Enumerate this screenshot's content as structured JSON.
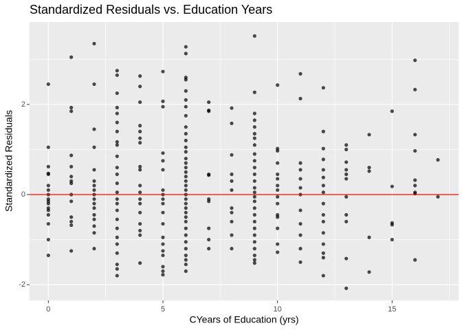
{
  "chart_data": {
    "type": "scatter",
    "title": "Standardized Residuals vs. Education Years",
    "x_label": "CYears of Education (yrs)",
    "y_label": "Standardized Residuals",
    "x": [
      0,
      0,
      0,
      0,
      0,
      0,
      0,
      0,
      0,
      0,
      0,
      0,
      0,
      0,
      0,
      0,
      0,
      1,
      1,
      1,
      1,
      1,
      1,
      1,
      1,
      1,
      1,
      1,
      1,
      1,
      1,
      2,
      2,
      2,
      2,
      2,
      2,
      2,
      2,
      2,
      2,
      2,
      2,
      2,
      2,
      2,
      2,
      2,
      3,
      3,
      3,
      3,
      3,
      3,
      3,
      3,
      3,
      3,
      3,
      3,
      3,
      3,
      3,
      3,
      3,
      3,
      3,
      3,
      3,
      3,
      3,
      3,
      3,
      4,
      4,
      4,
      4,
      4,
      4,
      4,
      4,
      4,
      4,
      4,
      4,
      4,
      4,
      4,
      4,
      4,
      4,
      5,
      5,
      5,
      5,
      5,
      5,
      5,
      5,
      5,
      5,
      5,
      5,
      5,
      5,
      5,
      5,
      5,
      5,
      5,
      6,
      6,
      6,
      6,
      6,
      6,
      6,
      6,
      6,
      6,
      6,
      6,
      6,
      6,
      6,
      6,
      6,
      6,
      6,
      6,
      6,
      6,
      6,
      6,
      6,
      6,
      6,
      6,
      6,
      6,
      6,
      6,
      6,
      6,
      6,
      6,
      7,
      7,
      7,
      7,
      7,
      7,
      7,
      7,
      7,
      7,
      8,
      8,
      8,
      8,
      8,
      8,
      8,
      8,
      8,
      8,
      8,
      9,
      9,
      9,
      9,
      9,
      9,
      9,
      9,
      9,
      9,
      9,
      9,
      9,
      9,
      9,
      9,
      9,
      9,
      9,
      9,
      9,
      9,
      9,
      9,
      9,
      9,
      9,
      10,
      10,
      10,
      10,
      10,
      10,
      10,
      10,
      10,
      10,
      10,
      10,
      10,
      10,
      10,
      11,
      11,
      11,
      11,
      11,
      11,
      11,
      11,
      11,
      11,
      11,
      11,
      12,
      12,
      12,
      12,
      12,
      12,
      12,
      12,
      12,
      12,
      12,
      12,
      12,
      12,
      12,
      12,
      13,
      13,
      13,
      13,
      13,
      13,
      13,
      13,
      13,
      13,
      13,
      14,
      14,
      14,
      14,
      14,
      15,
      15,
      15,
      15,
      15,
      16,
      16,
      16,
      16,
      16,
      16,
      16,
      16,
      16,
      17,
      17
    ],
    "y": [
      2.45,
      1.05,
      0.62,
      0.47,
      0.45,
      0.2,
      0.1,
      0,
      -0.1,
      -0.15,
      -0.2,
      -0.3,
      -0.35,
      -0.45,
      -0.65,
      -1.0,
      -1.35,
      3.05,
      1.93,
      1.85,
      0.87,
      0.62,
      0.4,
      0.3,
      0.25,
      0.0,
      -0.15,
      -0.5,
      -0.6,
      -0.68,
      -1.25,
      3.35,
      2.45,
      1.45,
      1.05,
      0.55,
      0.3,
      0.2,
      0.1,
      0,
      -0.1,
      -0.2,
      -0.3,
      -0.45,
      -0.55,
      -0.7,
      -0.85,
      -1.2,
      2.75,
      2.65,
      2.25,
      1.93,
      1.8,
      1.6,
      1.4,
      1.17,
      1.1,
      0.85,
      0.6,
      0.45,
      0.25,
      0.05,
      -0.1,
      -0.2,
      -0.35,
      -0.55,
      -0.75,
      -0.95,
      -1.1,
      -1.3,
      -1.55,
      -1.65,
      -1.8,
      2.63,
      2.4,
      2.05,
      1.53,
      1.4,
      1.25,
      1.15,
      0.62,
      0.55,
      0.2,
      0.05,
      -0.1,
      -0.2,
      -0.4,
      -0.65,
      -0.8,
      -0.9,
      -1.52,
      2.73,
      2.07,
      1.95,
      0.92,
      0.75,
      0.55,
      0.1,
      0,
      -0.1,
      -0.2,
      -0.4,
      -0.65,
      -0.95,
      -1.1,
      -1.25,
      -1.35,
      -1.6,
      -1.7,
      -1.78,
      3.28,
      3.13,
      2.6,
      2.55,
      2.3,
      2.1,
      1.95,
      1.75,
      1.5,
      1.35,
      1.2,
      1.05,
      0.95,
      0.8,
      0.7,
      0.6,
      0.5,
      0.4,
      0.3,
      0.2,
      0.1,
      0,
      -0.1,
      -0.2,
      -0.3,
      -0.4,
      -0.5,
      -0.6,
      -0.75,
      -0.9,
      -1.05,
      -1.2,
      -1.35,
      -1.45,
      -1.55,
      -1.7,
      2.05,
      1.87,
      1.85,
      0.45,
      0.43,
      -0.1,
      -0.15,
      -0.75,
      -1.0,
      -1.2,
      1.92,
      1.58,
      0.88,
      0.45,
      0.3,
      0.1,
      -0.3,
      -0.4,
      -0.6,
      -0.9,
      -1.2,
      3.52,
      2.27,
      1.8,
      1.65,
      1.5,
      1.35,
      1.25,
      1.1,
      0.9,
      0.75,
      0.6,
      0.45,
      0.3,
      0.15,
      0.05,
      -0.05,
      -0.15,
      -0.3,
      -0.45,
      -0.6,
      -0.75,
      -0.9,
      -1.05,
      -1.2,
      -1.35,
      -1.45,
      -1.52,
      2.43,
      1.02,
      0.97,
      0.7,
      0.45,
      0.35,
      0.2,
      0.1,
      -0.05,
      -0.2,
      -0.45,
      -0.5,
      -0.75,
      -1.1,
      -1.28,
      2.68,
      2.13,
      0.7,
      0.55,
      0.35,
      0.15,
      0,
      -0.35,
      -0.65,
      -0.9,
      -1.2,
      -1.5,
      2.37,
      1.4,
      1.02,
      0.78,
      0.55,
      0.38,
      0.2,
      0.05,
      -0.2,
      -0.45,
      -0.6,
      -0.85,
      -1.1,
      -1.3,
      -1.4,
      -1.8,
      1.1,
      1.0,
      0.72,
      0.55,
      0.45,
      0.35,
      -0.05,
      -0.45,
      -0.6,
      -1.42,
      -2.08,
      1.33,
      0.6,
      0.52,
      -0.95,
      -1.72,
      1.85,
      0.18,
      -0.63,
      -0.67,
      -1.0,
      2.98,
      2.33,
      1.33,
      0.97,
      0.32,
      0.2,
      0.05,
      0.02,
      -1.45,
      0.77,
      -0.05
    ],
    "color": "#000000",
    "opacity": 0.7,
    "xlim": [
      -0.82,
      17.9
    ],
    "ylim": [
      -2.35,
      3.83
    ],
    "xticks": [
      0,
      5,
      10,
      15
    ],
    "yticks": [
      -2,
      0,
      2
    ],
    "x_minor_grid": [
      2.5,
      7.5,
      12.5,
      17.5
    ],
    "y_minor_grid": [
      -1,
      1,
      3
    ],
    "grid": true,
    "hline": {
      "value": 0,
      "color": "#ff0000"
    }
  }
}
